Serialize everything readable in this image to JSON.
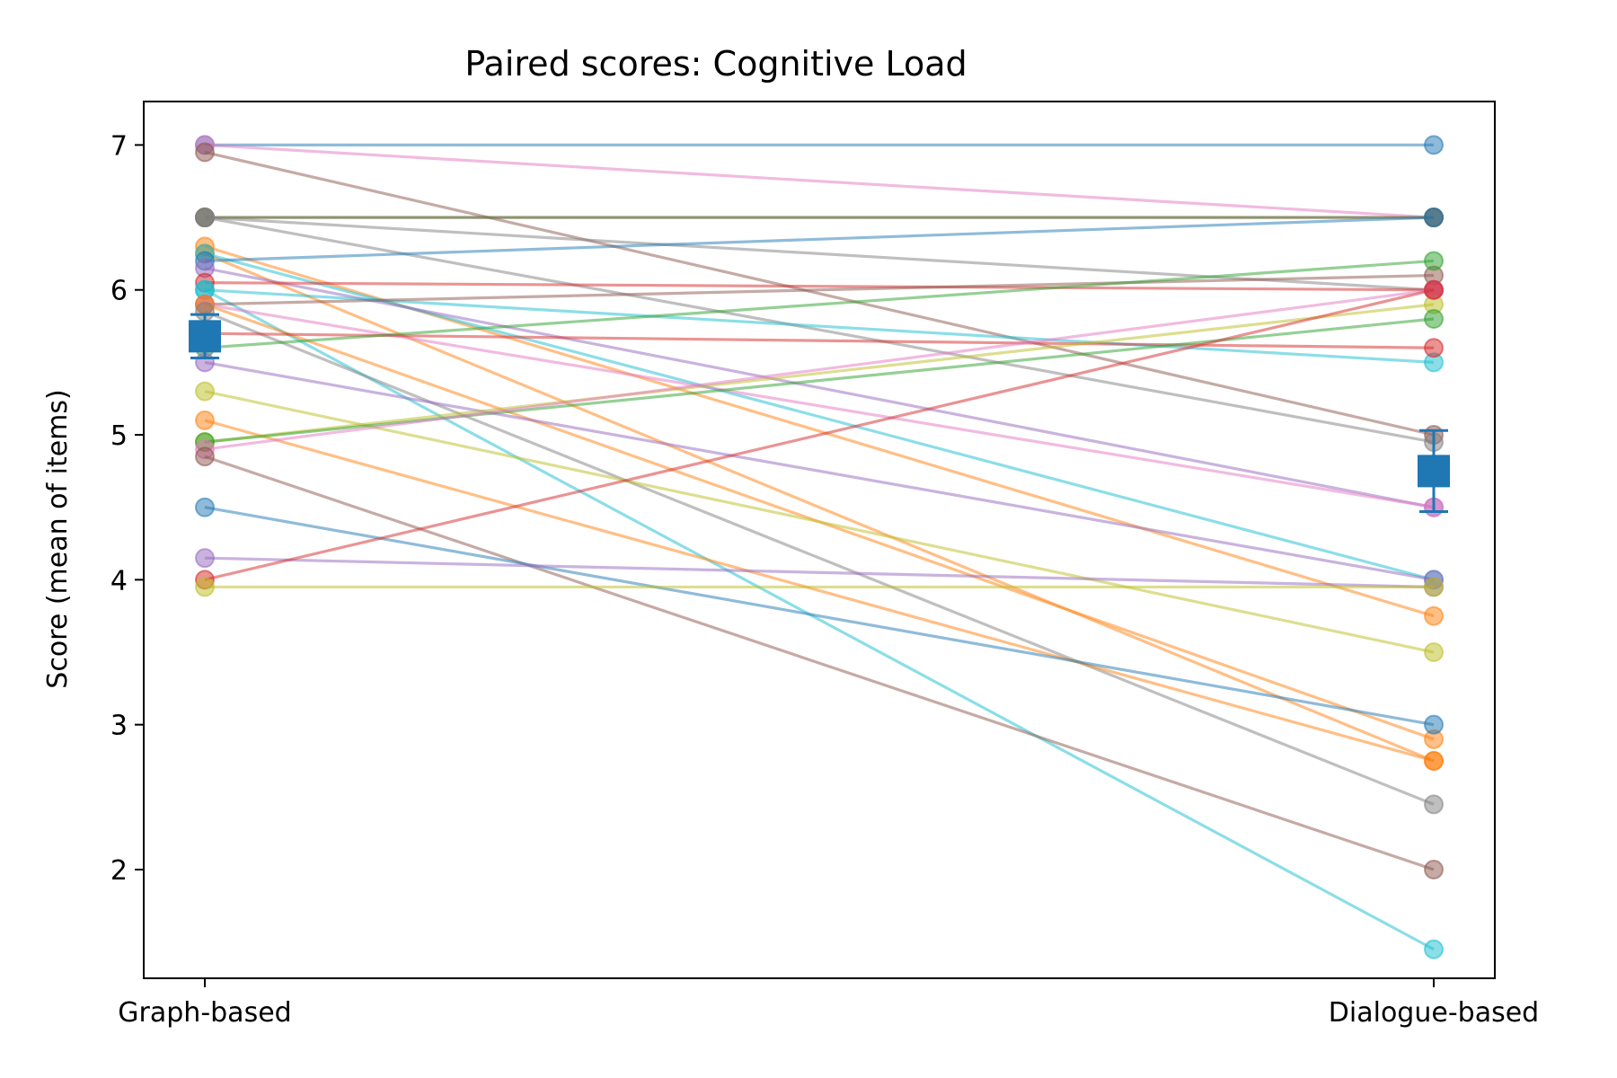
{
  "chart_data": {
    "type": "line",
    "title": "Paired scores: Cognitive Load",
    "xlabel": "",
    "ylabel": "Score (mean of items)",
    "categories": [
      "Graph-based",
      "Dialogue-based"
    ],
    "ylim": [
      1.25,
      7.3
    ],
    "yticks": [
      2,
      3,
      4,
      5,
      6,
      7
    ],
    "grid": false,
    "legend": "none",
    "series": [
      {
        "values": [
          7.0,
          7.0
        ],
        "color": "#1f77b4"
      },
      {
        "values": [
          7.0,
          6.5
        ],
        "color": "#e377c2"
      },
      {
        "values": [
          6.95,
          5.0
        ],
        "color": "#8c564b"
      },
      {
        "values": [
          6.5,
          6.5
        ],
        "color": "#2ca02c"
      },
      {
        "values": [
          6.5,
          6.5
        ],
        "color": "#8c564b"
      },
      {
        "values": [
          6.5,
          6.0
        ],
        "color": "#7f7f7f"
      },
      {
        "values": [
          6.5,
          4.95
        ],
        "color": "#7f7f7f"
      },
      {
        "values": [
          6.3,
          3.75
        ],
        "color": "#ff7f0e"
      },
      {
        "values": [
          6.25,
          2.75
        ],
        "color": "#ff7f0e"
      },
      {
        "values": [
          6.25,
          4.0
        ],
        "color": "#17becf"
      },
      {
        "values": [
          6.2,
          6.5
        ],
        "color": "#1f77b4"
      },
      {
        "values": [
          6.15,
          4.5
        ],
        "color": "#9467bd"
      },
      {
        "values": [
          6.05,
          6.0
        ],
        "color": "#d62728"
      },
      {
        "values": [
          6.0,
          5.5
        ],
        "color": "#17becf"
      },
      {
        "values": [
          6.0,
          1.45
        ],
        "color": "#17becf"
      },
      {
        "values": [
          5.9,
          6.1
        ],
        "color": "#8c564b"
      },
      {
        "values": [
          5.9,
          4.5
        ],
        "color": "#e377c2"
      },
      {
        "values": [
          5.9,
          2.9
        ],
        "color": "#ff7f0e"
      },
      {
        "values": [
          5.85,
          2.45
        ],
        "color": "#7f7f7f"
      },
      {
        "values": [
          5.7,
          5.6
        ],
        "color": "#d62728"
      },
      {
        "values": [
          5.6,
          6.2
        ],
        "color": "#2ca02c"
      },
      {
        "values": [
          5.5,
          4.0
        ],
        "color": "#9467bd"
      },
      {
        "values": [
          5.3,
          3.5
        ],
        "color": "#bcbd22"
      },
      {
        "values": [
          5.1,
          2.75
        ],
        "color": "#ff7f0e"
      },
      {
        "values": [
          4.95,
          5.9
        ],
        "color": "#bcbd22"
      },
      {
        "values": [
          4.95,
          5.8
        ],
        "color": "#2ca02c"
      },
      {
        "values": [
          4.9,
          6.0
        ],
        "color": "#e377c2"
      },
      {
        "values": [
          4.85,
          2.0
        ],
        "color": "#8c564b"
      },
      {
        "values": [
          4.5,
          3.0
        ],
        "color": "#1f77b4"
      },
      {
        "values": [
          4.15,
          3.95
        ],
        "color": "#9467bd"
      },
      {
        "values": [
          4.0,
          6.0
        ],
        "color": "#d62728"
      },
      {
        "values": [
          3.95,
          3.95
        ],
        "color": "#bcbd22"
      }
    ],
    "mean": {
      "values": [
        5.68,
        4.75
      ],
      "error": [
        0.15,
        0.28
      ],
      "color": "#1f77b4"
    }
  }
}
